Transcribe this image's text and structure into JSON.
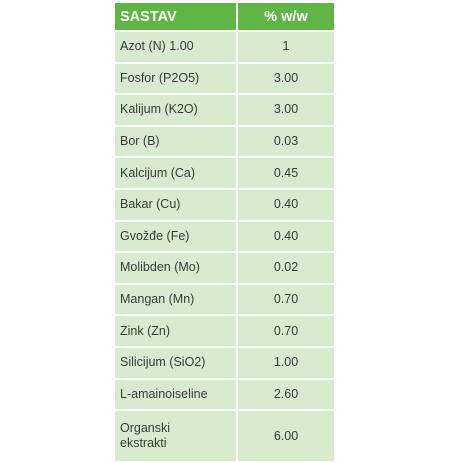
{
  "header": {
    "col1": "SASTAV",
    "col2": "% w/w"
  },
  "rows": [
    {
      "name": "Azot (N) 1.00",
      "value": "1"
    },
    {
      "name": "Fosfor (P2O5)",
      "value": "3.00"
    },
    {
      "name": "Kalijum (K2O)",
      "value": "3.00"
    },
    {
      "name": "Bor (B)",
      "value": "0.03"
    },
    {
      "name": "Kalcijum (Ca)",
      "value": "0.45"
    },
    {
      "name": "Bakar (Cu)",
      "value": "0.40"
    },
    {
      "name": "Gvožđe (Fe)",
      "value": "0.40"
    },
    {
      "name": "Molibden (Mo)",
      "value": "0.02"
    },
    {
      "name": "Mangan (Mn)",
      "value": "0.70"
    },
    {
      "name": "Zink (Zn)",
      "value": "0.70"
    },
    {
      "name": "Silicijum (SiO2)",
      "value": "1.00"
    },
    {
      "name": "L-amainoiseline",
      "value": "2.60"
    },
    {
      "name": "Organski\nekstrakti",
      "value": "6.00"
    }
  ],
  "colors": {
    "header_bg": "#5fb645",
    "row_bg": "#d8ebcf"
  }
}
